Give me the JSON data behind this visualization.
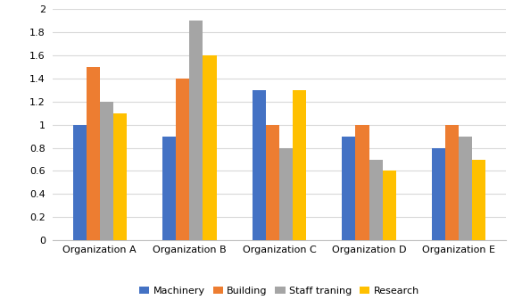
{
  "categories": [
    "Organization A",
    "Organization B",
    "Organization C",
    "Organization D",
    "Organization E"
  ],
  "series": {
    "Machinery": [
      1.0,
      0.9,
      1.3,
      0.9,
      0.8
    ],
    "Building": [
      1.5,
      1.4,
      1.0,
      1.0,
      1.0
    ],
    "Staff traning": [
      1.2,
      1.9,
      0.8,
      0.7,
      0.9
    ],
    "Research": [
      1.1,
      1.6,
      1.3,
      0.6,
      0.7
    ]
  },
  "colors": {
    "Machinery": "#4472C4",
    "Building": "#ED7D31",
    "Staff traning": "#A5A5A5",
    "Research": "#FFC000"
  },
  "ylim": [
    0,
    2.0
  ],
  "yticks": [
    0,
    0.2,
    0.4,
    0.6,
    0.8,
    1.0,
    1.2,
    1.4,
    1.6,
    1.8,
    2.0
  ],
  "ytick_labels": [
    "0",
    "0.2",
    "0.4",
    "0.6",
    "0.8",
    "1",
    "1.2",
    "1.4",
    "1.6",
    "1.8",
    "2"
  ],
  "legend_labels": [
    "Machinery",
    "Building",
    "Staff traning",
    "Research"
  ],
  "background_color": "#ffffff",
  "grid_color": "#d9d9d9"
}
